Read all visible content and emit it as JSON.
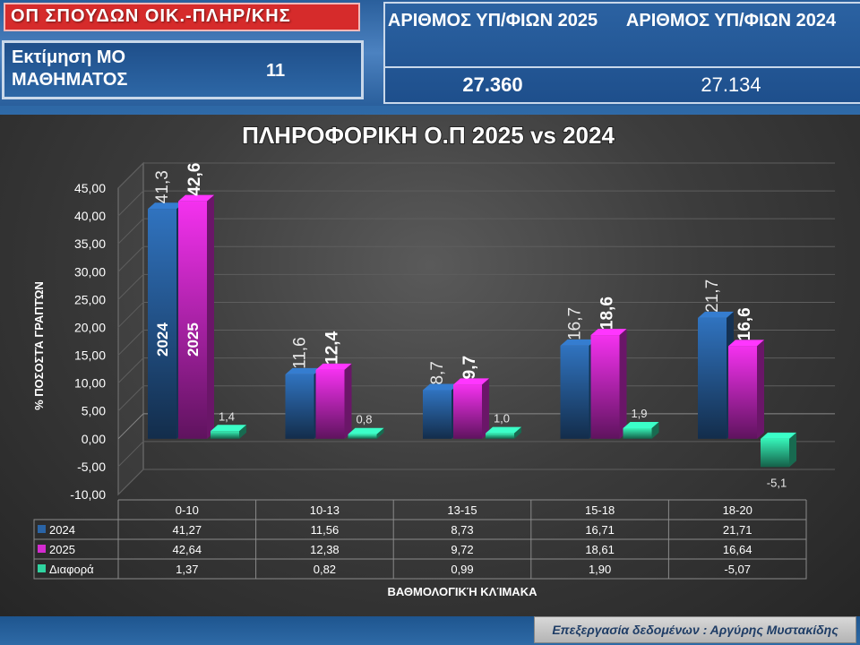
{
  "header": {
    "title": "ΟΠ ΣΠΟΥΔΩΝ ΟΙΚ.-ΠΛΗΡ/ΚΗΣ",
    "mo_label": "Εκτίμηση ΜΟ ΜΑΘΗΜΑΤΟΣ",
    "mo_value": "11",
    "col1_header": "ΑΡΙΘΜΟΣ ΥΠ/ΦΙΩΝ 2025",
    "col2_header": "ΑΡΙΘΜΟΣ ΥΠ/ΦΙΩΝ 2024",
    "col1_value": "27.360",
    "col2_value": "27.134"
  },
  "footer": {
    "credit": "Επεξεργασία δεδομένων : Αργύρης Μυστακίδης"
  },
  "colors": {
    "2024": "#2a64a6",
    "2025": "#d42bd0",
    "diff": "#2fd4a0"
  },
  "chart_data": {
    "type": "bar",
    "title": "ΠΛΗΡΟΦΟΡΙΚΗ Ο.Π 2025 vs 2024",
    "xlabel": "ΒΑΘΜΟΛΟΓΙΚΉ ΚΛΊΜΑΚΑ",
    "ylabel": "% ΠΟΣΟΣΤΆ ΓΡΑΠΤΏΝ",
    "categories": [
      "0-10",
      "10-13",
      "13-15",
      "15-18",
      "18-20"
    ],
    "ylim": [
      -10,
      45
    ],
    "yticks": [
      "45,00",
      "40,00",
      "35,00",
      "30,00",
      "25,00",
      "20,00",
      "15,00",
      "10,00",
      "5,00",
      "0,00",
      "-5,00",
      "-10,00"
    ],
    "grid": true,
    "legend": "data table below chart",
    "series": [
      {
        "name": "2024",
        "values": [
          41.27,
          11.56,
          8.73,
          16.71,
          21.71
        ],
        "labels": [
          "41,3",
          "11,6",
          "8,7",
          "16,7",
          "21,7"
        ],
        "table": [
          "41,27",
          "11,56",
          "8,73",
          "16,71",
          "21,71"
        ]
      },
      {
        "name": "2025",
        "values": [
          42.64,
          12.38,
          9.72,
          18.61,
          16.64
        ],
        "labels": [
          "42,6",
          "12,4",
          "9,7",
          "18,6",
          "16,6"
        ],
        "table": [
          "42,64",
          "12,38",
          "9,72",
          "18,61",
          "16,64"
        ]
      },
      {
        "name": "Διαφορά",
        "values": [
          1.37,
          0.82,
          0.99,
          1.9,
          -5.07
        ],
        "labels": [
          "1,4",
          "0,8",
          "1,0",
          "1,9",
          "-5,1"
        ],
        "table": [
          "1,37",
          "0,82",
          "0,99",
          "1,90",
          "-5,07"
        ]
      }
    ],
    "in_bar_labels": [
      "2024",
      "2025"
    ]
  }
}
